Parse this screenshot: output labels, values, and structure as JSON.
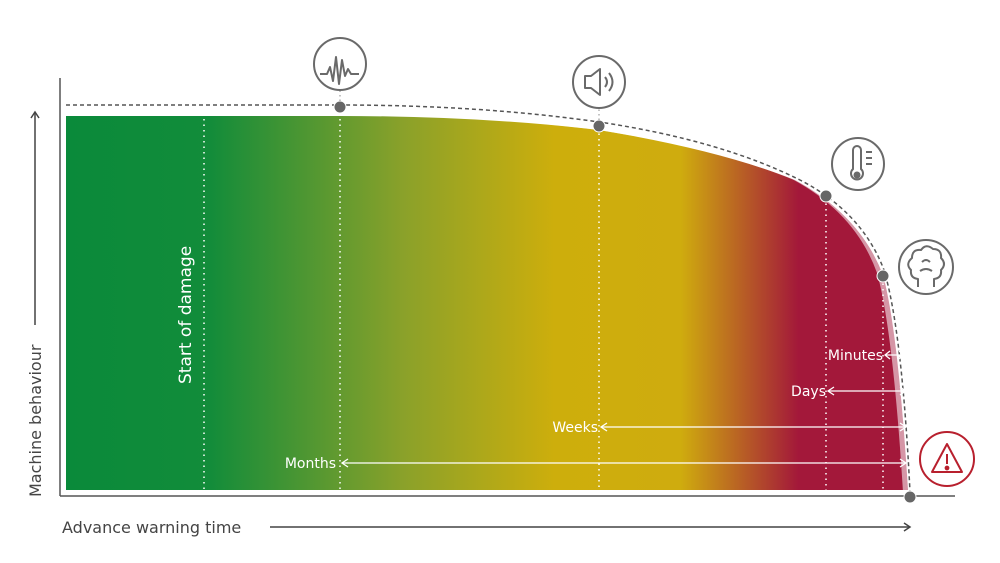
{
  "diagram": {
    "y_axis_label": "Machine behaviour",
    "x_axis_label": "Advance warning time",
    "start_label": "Start of damage",
    "intervals": [
      {
        "label": "Months"
      },
      {
        "label": "Weeks"
      },
      {
        "label": "Days"
      },
      {
        "label": "Minutes"
      }
    ],
    "stage_icons": [
      {
        "icon": "vibration-icon"
      },
      {
        "icon": "noise-speaker-icon"
      },
      {
        "icon": "temperature-thermometer-icon"
      },
      {
        "icon": "smoke-icon"
      },
      {
        "icon": "warning-triangle-icon"
      }
    ],
    "colors": {
      "green": "#0a8a3a",
      "yellow": "#d1ad0a",
      "red": "#a3183a",
      "alert": "#b8202e",
      "axis": "#555555",
      "icon_stroke": "#6a6a6a"
    }
  }
}
